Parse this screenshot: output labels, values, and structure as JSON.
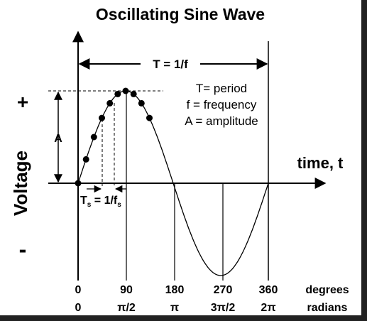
{
  "title": "Oscillating Sine Wave",
  "period_label": "T = 1/f",
  "definitions": [
    "T= period",
    "f = frequency",
    "A = amplitude"
  ],
  "amplitude_label": "A",
  "y_axis": {
    "label": "Voltage",
    "plus": "+",
    "minus": "-"
  },
  "x_axis": {
    "label": "time, t",
    "degrees_unit": "degrees",
    "radians_unit": "radians",
    "degree_ticks": [
      "0",
      "90",
      "180",
      "270",
      "360"
    ],
    "radian_ticks": [
      "0",
      "π/2",
      "π",
      "3π/2",
      "2π"
    ]
  },
  "sampling": {
    "Ts_main": "T",
    "Ts_sub": "s",
    "equals": " = 1/f",
    "fs_sub": "s"
  },
  "colors": {
    "background": "#ffffff",
    "ink": "#000000",
    "frame": "#222222"
  }
}
